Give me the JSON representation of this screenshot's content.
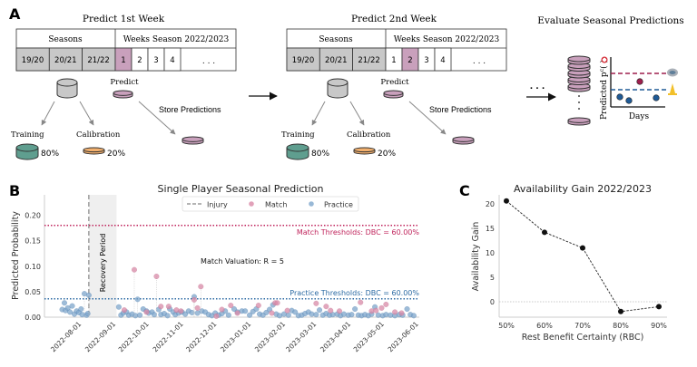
{
  "panel_a": {
    "label": "A",
    "step1": {
      "title": "Predict 1st Week",
      "highlight_week": 1
    },
    "step2": {
      "title": "Predict 2nd Week",
      "highlight_week": 2
    },
    "seasons_header": "Seasons",
    "weeks_header": "Weeks Season 2022/2023",
    "seasons": [
      "19/20",
      "20/21",
      "21/22"
    ],
    "weeks": [
      "1",
      "2",
      "3",
      "4"
    ],
    "ellipsis": ". . .",
    "predict": "Predict",
    "store": "Store Predictions",
    "training": "Training",
    "training_pct": "80%",
    "calibration": "Calibration",
    "calibration_pct": "20%",
    "evaluate_title": "Evaluate Seasonal Predictions",
    "mini_ylabel": "Predicted  p",
    "mini_ylabel_sup": "c",
    "mini_ylabel_paren": "(  )",
    "mini_xlabel": "Days",
    "colors": {
      "predict": "#c9a0bc",
      "training": "#5f9e8f",
      "calibration": "#f2b06e",
      "gray": "#c8c8c8",
      "match": "#9e1f4d",
      "practice": "#1f5a96"
    }
  },
  "chart_data": [
    {
      "panel_label": "B",
      "type": "scatter",
      "title": "Single Player Seasonal Prediction",
      "xlabel": "",
      "ylabel": "Predicted Probability",
      "xlim": [
        "2022-07-01",
        "2023-06-04"
      ],
      "ylim": [
        0,
        0.24
      ],
      "yticks": [
        "0.00",
        "0.05",
        "0.10",
        "0.15",
        "0.20"
      ],
      "xticks": [
        "2022-08-01",
        "2022-09-01",
        "2022-10-01",
        "2022-11-01",
        "2022-12-01",
        "2023-01-01",
        "2023-02-01",
        "2023-03-01",
        "2023-04-01",
        "2023-05-01",
        "2023-06-01"
      ],
      "legend": {
        "position": "top-center",
        "entries": [
          "Injury",
          "Match",
          "Practice"
        ]
      },
      "injury_date": "2022-08-10",
      "recovery_period": {
        "label": "Recovery Period",
        "start": "2022-08-10",
        "end": "2022-09-04"
      },
      "thresholds": [
        {
          "name": "Match Thresholds: DBC = 60.00%",
          "value": 0.18,
          "color": "#c0245c"
        },
        {
          "name": "Practice Thresholds: DBC = 60.00%",
          "value": 0.036,
          "color": "#2b6aa3"
        }
      ],
      "annotation": "Match Valuation: R = 5",
      "series": [
        {
          "name": "Match",
          "color": "#d98aa8",
          "points": [
            [
              "2022-09-11",
              0.014
            ],
            [
              "2022-09-20",
              0.093
            ],
            [
              "2022-10-01",
              0.01
            ],
            [
              "2022-10-10",
              0.08
            ],
            [
              "2022-10-14",
              0.021
            ],
            [
              "2022-10-21",
              0.021
            ],
            [
              "2022-10-28",
              0.014
            ],
            [
              "2022-11-01",
              0.012
            ],
            [
              "2022-11-13",
              0.034
            ],
            [
              "2022-11-16",
              0.018
            ],
            [
              "2022-11-19",
              0.06
            ],
            [
              "2022-12-03",
              0.002
            ],
            [
              "2022-12-08",
              0.015
            ],
            [
              "2022-12-16",
              0.023
            ],
            [
              "2022-12-22",
              0.008
            ],
            [
              "2023-01-10",
              0.023
            ],
            [
              "2023-01-22",
              0.008
            ],
            [
              "2023-01-25",
              0.028
            ],
            [
              "2023-01-27",
              0.028
            ],
            [
              "2023-02-05",
              0.013
            ],
            [
              "2023-03-03",
              0.027
            ],
            [
              "2023-03-12",
              0.021
            ],
            [
              "2023-03-16",
              0.013
            ],
            [
              "2023-03-24",
              0.012
            ],
            [
              "2023-04-12",
              0.029
            ],
            [
              "2023-04-22",
              0.012
            ],
            [
              "2023-04-26",
              0.013
            ],
            [
              "2023-05-01",
              0.018
            ],
            [
              "2023-05-05",
              0.025
            ],
            [
              "2023-05-13",
              0.01
            ],
            [
              "2023-05-19",
              0.008
            ]
          ]
        },
        {
          "name": "Practice",
          "color": "#7ea6cc",
          "points": [
            [
              "2022-07-17",
              0.015
            ],
            [
              "2022-07-19",
              0.028
            ],
            [
              "2022-07-20",
              0.013
            ],
            [
              "2022-07-22",
              0.018
            ],
            [
              "2022-07-24",
              0.01
            ],
            [
              "2022-07-26",
              0.022
            ],
            [
              "2022-07-28",
              0.006
            ],
            [
              "2022-07-30",
              0.012
            ],
            [
              "2022-08-01",
              0.009
            ],
            [
              "2022-08-03",
              0.016
            ],
            [
              "2022-08-04",
              0.005
            ],
            [
              "2022-08-06",
              0.046
            ],
            [
              "2022-08-08",
              0.004
            ],
            [
              "2022-08-09",
              0.007
            ],
            [
              "2022-08-10",
              0.043
            ],
            [
              "2022-09-06",
              0.02
            ],
            [
              "2022-09-08",
              0.004
            ],
            [
              "2022-09-10",
              0.008
            ],
            [
              "2022-09-13",
              0.01
            ],
            [
              "2022-09-15",
              0.004
            ],
            [
              "2022-09-18",
              0.006
            ],
            [
              "2022-09-21",
              0.003
            ],
            [
              "2022-09-23",
              0.035
            ],
            [
              "2022-09-25",
              0.004
            ],
            [
              "2022-09-28",
              0.016
            ],
            [
              "2022-10-01",
              0.012
            ],
            [
              "2022-10-03",
              0.008
            ],
            [
              "2022-10-06",
              0.01
            ],
            [
              "2022-10-08",
              0.005
            ],
            [
              "2022-10-12",
              0.015
            ],
            [
              "2022-10-14",
              0.005
            ],
            [
              "2022-10-17",
              0.007
            ],
            [
              "2022-10-20",
              0.003
            ],
            [
              "2022-10-22",
              0.016
            ],
            [
              "2022-10-25",
              0.01
            ],
            [
              "2022-10-27",
              0.005
            ],
            [
              "2022-10-30",
              0.008
            ],
            [
              "2022-11-02",
              0.01
            ],
            [
              "2022-11-05",
              0.006
            ],
            [
              "2022-11-08",
              0.012
            ],
            [
              "2022-11-11",
              0.009
            ],
            [
              "2022-11-13",
              0.04
            ],
            [
              "2022-11-16",
              0.008
            ],
            [
              "2022-11-20",
              0.012
            ],
            [
              "2022-11-23",
              0.01
            ],
            [
              "2022-11-26",
              0.005
            ],
            [
              "2022-11-29",
              0.003
            ],
            [
              "2022-12-02",
              0.008
            ],
            [
              "2022-12-05",
              0.004
            ],
            [
              "2022-12-08",
              0.007
            ],
            [
              "2022-12-11",
              0.012
            ],
            [
              "2022-12-14",
              0.004
            ],
            [
              "2022-12-19",
              0.016
            ],
            [
              "2022-12-22",
              0.01
            ],
            [
              "2022-12-26",
              0.012
            ],
            [
              "2022-12-29",
              0.012
            ],
            [
              "2023-01-02",
              0.004
            ],
            [
              "2023-01-05",
              0.011
            ],
            [
              "2023-01-08",
              0.016
            ],
            [
              "2023-01-11",
              0.006
            ],
            [
              "2023-01-14",
              0.004
            ],
            [
              "2023-01-17",
              0.009
            ],
            [
              "2023-01-20",
              0.015
            ],
            [
              "2023-01-23",
              0.024
            ],
            [
              "2023-01-26",
              0.006
            ],
            [
              "2023-01-29",
              0.003
            ],
            [
              "2023-02-02",
              0.006
            ],
            [
              "2023-02-06",
              0.004
            ],
            [
              "2023-02-09",
              0.013
            ],
            [
              "2023-02-12",
              0.01
            ],
            [
              "2023-02-15",
              0.003
            ],
            [
              "2023-02-18",
              0.004
            ],
            [
              "2023-02-21",
              0.007
            ],
            [
              "2023-02-24",
              0.01
            ],
            [
              "2023-02-27",
              0.006
            ],
            [
              "2023-03-03",
              0.005
            ],
            [
              "2023-03-06",
              0.014
            ],
            [
              "2023-03-09",
              0.004
            ],
            [
              "2023-03-12",
              0.007
            ],
            [
              "2023-03-15",
              0.004
            ],
            [
              "2023-03-18",
              0.005
            ],
            [
              "2023-03-22",
              0.006
            ],
            [
              "2023-03-25",
              0.003
            ],
            [
              "2023-03-28",
              0.006
            ],
            [
              "2023-04-01",
              0.004
            ],
            [
              "2023-04-04",
              0.005
            ],
            [
              "2023-04-07",
              0.016
            ],
            [
              "2023-04-10",
              0.004
            ],
            [
              "2023-04-13",
              0.003
            ],
            [
              "2023-04-16",
              0.005
            ],
            [
              "2023-04-19",
              0.003
            ],
            [
              "2023-04-22",
              0.006
            ],
            [
              "2023-04-25",
              0.02
            ],
            [
              "2023-04-28",
              0.004
            ],
            [
              "2023-05-02",
              0.003
            ],
            [
              "2023-05-05",
              0.005
            ],
            [
              "2023-05-09",
              0.004
            ],
            [
              "2023-05-13",
              0.003
            ],
            [
              "2023-05-17",
              0.005
            ],
            [
              "2023-05-20",
              0.004
            ],
            [
              "2023-05-24",
              0.016
            ],
            [
              "2023-05-27",
              0.005
            ],
            [
              "2023-05-30",
              0.003
            ]
          ]
        }
      ]
    },
    {
      "panel_label": "C",
      "type": "line",
      "title": "Availability Gain 2022/2023",
      "xlabel": "Rest Benefit Certainty (RBC)",
      "ylabel": "Availability Gain",
      "categories": [
        "50%",
        "60%",
        "70%",
        "80%",
        "90%"
      ],
      "values": [
        20.6,
        14.2,
        11.0,
        -2.0,
        -1.0
      ],
      "ylim": [
        -3,
        21.5
      ],
      "yticks": [
        "0",
        "5",
        "10",
        "15",
        "20"
      ],
      "reference_line": 0
    }
  ]
}
